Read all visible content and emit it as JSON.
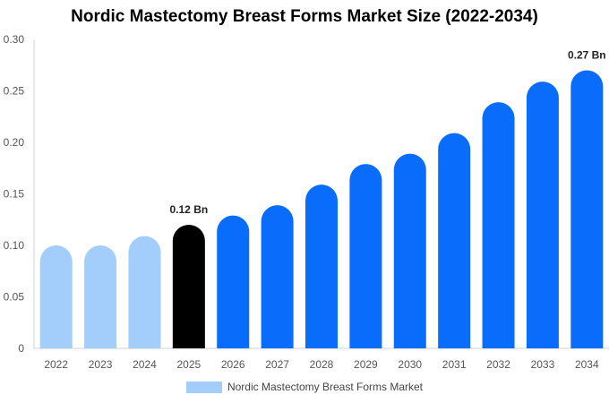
{
  "chart_data": {
    "type": "bar",
    "title": "Nordic Mastectomy Breast Forms Market Size (2022-2034)",
    "xlabel": "",
    "ylabel": "",
    "ylim": [
      0,
      0.3
    ],
    "yticks": [
      {
        "value": 0,
        "label": "0"
      },
      {
        "value": 0.05,
        "label": "0.05"
      },
      {
        "value": 0.1,
        "label": "0.10"
      },
      {
        "value": 0.15,
        "label": "0.15"
      },
      {
        "value": 0.2,
        "label": "0.20"
      },
      {
        "value": 0.25,
        "label": "0.25"
      },
      {
        "value": 0.3,
        "label": "0.30"
      }
    ],
    "categories": [
      "2022",
      "2023",
      "2024",
      "2025",
      "2026",
      "2027",
      "2028",
      "2029",
      "2030",
      "2031",
      "2032",
      "2033",
      "2034"
    ],
    "series": [
      {
        "name": "Nordic Mastectomy Breast Forms Market",
        "values": [
          0.1,
          0.1,
          0.109,
          0.12,
          0.129,
          0.139,
          0.159,
          0.179,
          0.189,
          0.209,
          0.239,
          0.259,
          0.27
        ]
      }
    ],
    "bar_colors": [
      "#a3cdfb",
      "#a3cdfb",
      "#a3cdfb",
      "#000000",
      "#0a6cfb",
      "#0a6cfb",
      "#0a6cfb",
      "#0a6cfb",
      "#0a6cfb",
      "#0a6cfb",
      "#0a6cfb",
      "#0a6cfb",
      "#0a6cfb"
    ],
    "data_labels": [
      {
        "index": 3,
        "text": "0.12 Bn"
      },
      {
        "index": 12,
        "text": "0.27 Bn"
      }
    ],
    "legend": {
      "position": "bottom",
      "label": "Nordic Mastectomy Breast Forms Market",
      "color": "#a3cdfb"
    },
    "grid": false
  }
}
